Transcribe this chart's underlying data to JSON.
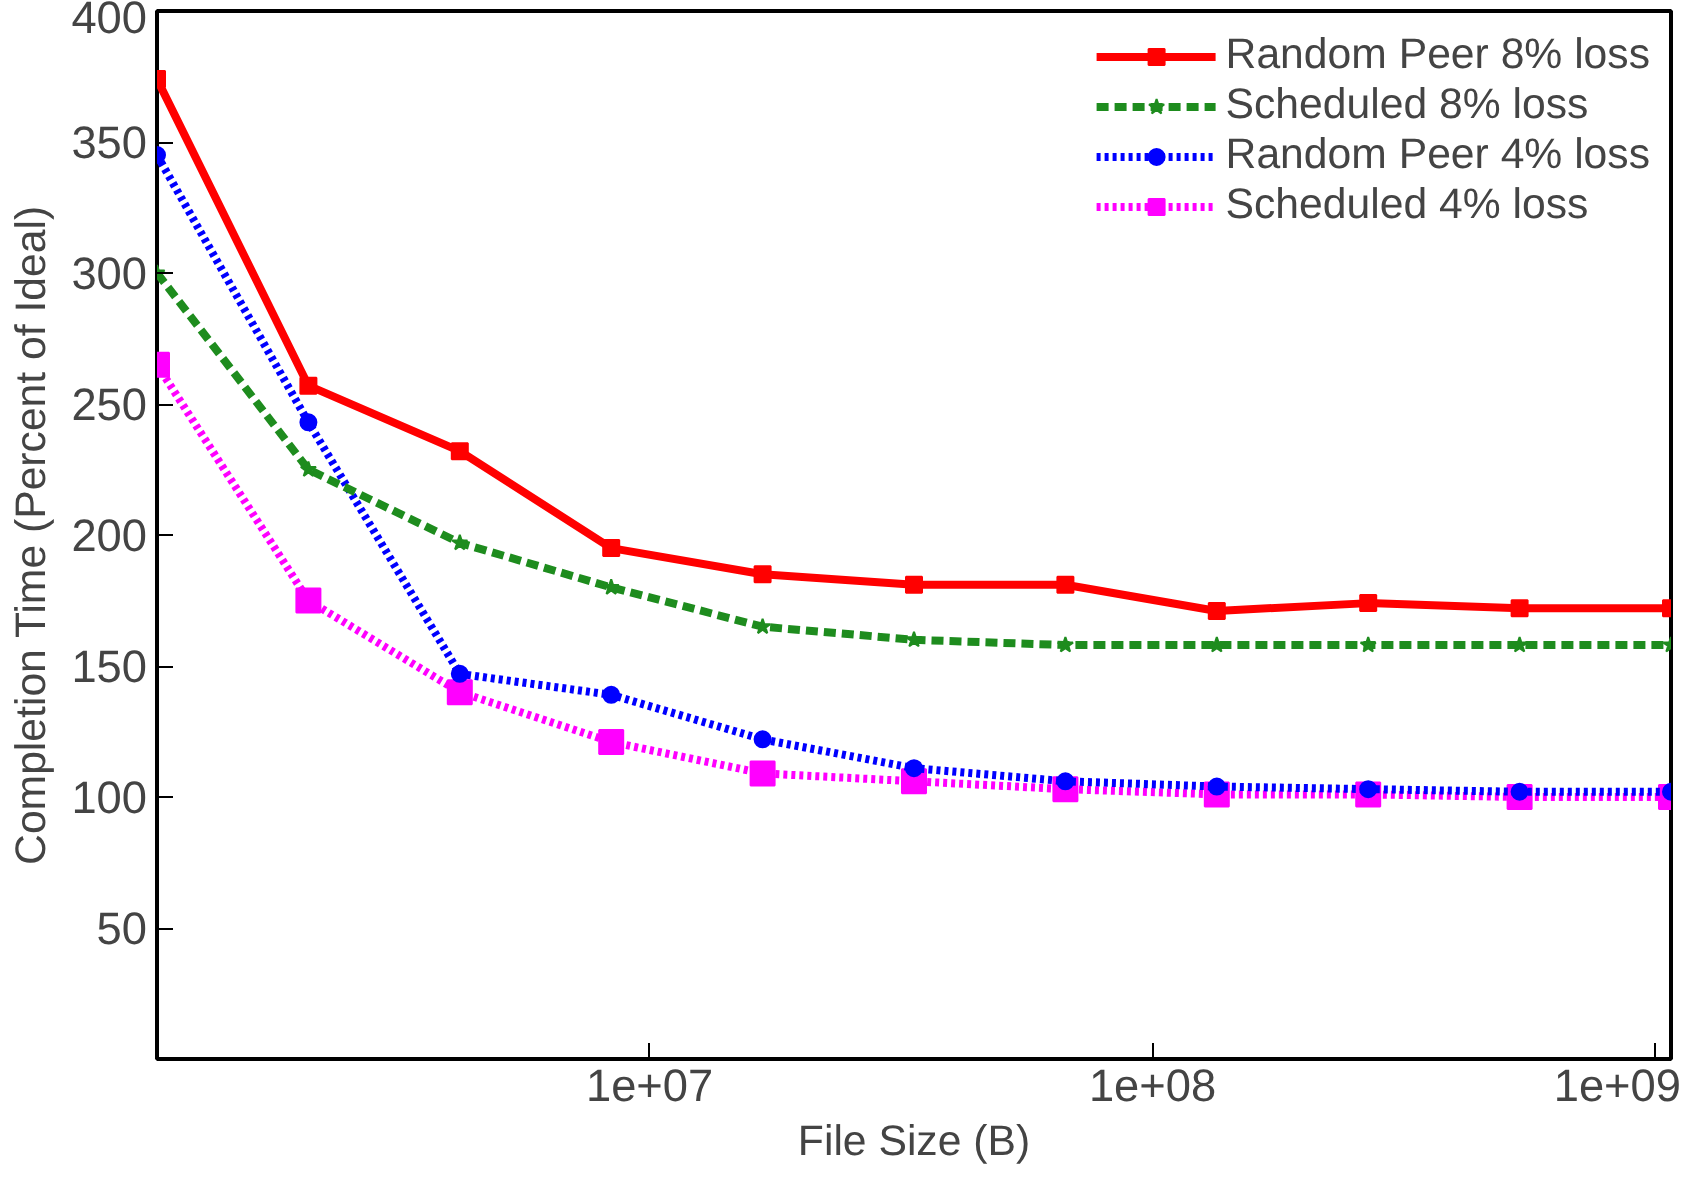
{
  "chart_data": {
    "type": "line",
    "xlabel": "File Size (B)",
    "ylabel": "Completion Time (Percent of Ideal)",
    "x": [
      1048576,
      2097152,
      4194304,
      8388608,
      16777216,
      33554432,
      67108864,
      134217728,
      268435456,
      536870912,
      1073741824
    ],
    "log": "x",
    "xlim": [
      1048576,
      1073741824
    ],
    "xticks": [
      {
        "value": 10000000,
        "label": "1e+07"
      },
      {
        "value": 100000000,
        "label": "1e+08"
      },
      {
        "value": 1000000000,
        "label": "1e+09"
      }
    ],
    "ylim": [
      0,
      400
    ],
    "yticks": [
      50,
      100,
      150,
      200,
      250,
      300,
      350,
      400
    ],
    "grid": false,
    "legend": "top right",
    "series": [
      {
        "name": "Random Peer 8% loss",
        "color": "#ff0000",
        "marker": "square",
        "line_style": "solid",
        "values": [
          374,
          257,
          232,
          195,
          185,
          181,
          181,
          171,
          174,
          172,
          172
        ]
      },
      {
        "name": "Scheduled 8% loss",
        "color": "#1e8c1e",
        "marker": "star",
        "line_style": "dashed",
        "values": [
          300,
          225,
          197,
          180,
          165,
          160,
          158,
          158,
          158,
          158,
          158
        ]
      },
      {
        "name": "Random Peer 4% loss",
        "color": "#0000ff",
        "marker": "circle",
        "line_style": "dotted",
        "values": [
          345,
          243,
          147,
          139,
          122,
          111,
          106,
          104,
          103,
          102,
          102
        ]
      },
      {
        "name": "Scheduled 4% loss",
        "color": "#ff00ff",
        "marker": "square",
        "line_style": "dotted",
        "values": [
          265,
          175,
          140,
          121,
          109,
          106,
          103,
          101,
          101,
          100,
          100
        ]
      }
    ]
  }
}
